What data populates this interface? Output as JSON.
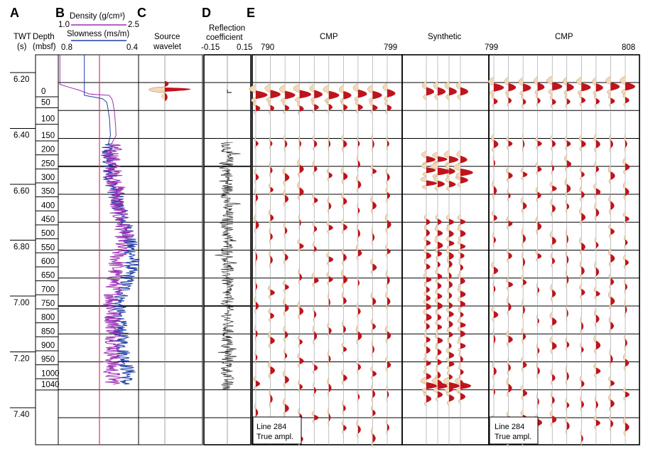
{
  "panel_letters": [
    "A",
    "B",
    "C",
    "D",
    "E"
  ],
  "headers": {
    "twt_title": "TWT",
    "twt_unit": "(s)",
    "depth_title": "Depth",
    "depth_unit": "(mbsf)",
    "density_label": "Density (g/cm³)",
    "density_min": "1.0",
    "density_max": "2.5",
    "slowness_label": "Slowness (ms/m)",
    "slowness_min": "0.8",
    "slowness_max": "0.4",
    "source_line1": "Source",
    "source_line2": "wavelet",
    "refl_line1": "Reflection",
    "refl_line2": "coefficient",
    "refl_min": "-0.15",
    "refl_max": "0.15",
    "cmp_left_title": "CMP",
    "cmp_left_start": "790",
    "cmp_left_end": "799",
    "synthetic_title": "Synthetic",
    "cmp_right_title": "CMP",
    "cmp_right_start": "799",
    "cmp_right_end": "808"
  },
  "line_labels": {
    "left_line1": "Line 284",
    "left_line2": "True ampl.",
    "right_line1": "Line 284",
    "right_line2": "True ampl."
  },
  "colors": {
    "density": "#9b2fb5",
    "slowness": "#1f3ea8",
    "red_marker": "#e0306a",
    "wiggle_positive": "#c0141c",
    "wiggle_negative": "#f3d9b5"
  },
  "chart_data": {
    "type": "line",
    "twt_ticks": [
      "6.20",
      "6.40",
      "6.60",
      "6.80",
      "7.00",
      "7.20",
      "7.40"
    ],
    "depth_ticks": [
      "0",
      "50",
      "100",
      "150",
      "200",
      "250",
      "300",
      "350",
      "400",
      "450",
      "500",
      "550",
      "600",
      "650",
      "700",
      "750",
      "800",
      "850",
      "900",
      "950",
      "1000",
      "1040"
    ],
    "xlim_density": [
      1.0,
      2.5
    ],
    "xlim_slowness": [
      0.8,
      0.4
    ],
    "xlim_reflection": [
      -0.15,
      0.15
    ],
    "density_series": {
      "name": "Density",
      "depth": [
        0,
        5,
        10,
        20,
        30,
        40,
        50,
        60,
        80,
        100,
        120,
        150,
        180,
        200,
        250,
        300,
        350,
        400,
        450,
        500,
        550,
        600,
        650,
        700,
        750,
        800,
        850,
        900,
        950,
        1000,
        1040
      ],
      "values": [
        1.03,
        1.03,
        1.03,
        1.03,
        1.95,
        2.0,
        2.02,
        2.03,
        2.05,
        2.06,
        2.07,
        2.08,
        2.0,
        2.02,
        2.0,
        2.05,
        2.1,
        2.1,
        2.15,
        2.25,
        2.15,
        2.1,
        2.05,
        2.05,
        2.0,
        2.02,
        2.05,
        2.05,
        2.0,
        2.0,
        2.05
      ]
    },
    "slowness_series": {
      "name": "Slowness",
      "depth": [
        0,
        10,
        20,
        30,
        40,
        50,
        60,
        80,
        100,
        150,
        180,
        200,
        250,
        300,
        350,
        400,
        450,
        500,
        550,
        600,
        650,
        700,
        750,
        800,
        850,
        900,
        950,
        1000,
        1040
      ],
      "values": [
        0.67,
        0.67,
        0.67,
        0.67,
        0.58,
        0.56,
        0.555,
        0.55,
        0.545,
        0.54,
        0.55,
        0.56,
        0.55,
        0.54,
        0.52,
        0.5,
        0.48,
        0.45,
        0.44,
        0.43,
        0.45,
        0.47,
        0.5,
        0.5,
        0.49,
        0.48,
        0.47,
        0.45,
        0.47
      ]
    }
  }
}
